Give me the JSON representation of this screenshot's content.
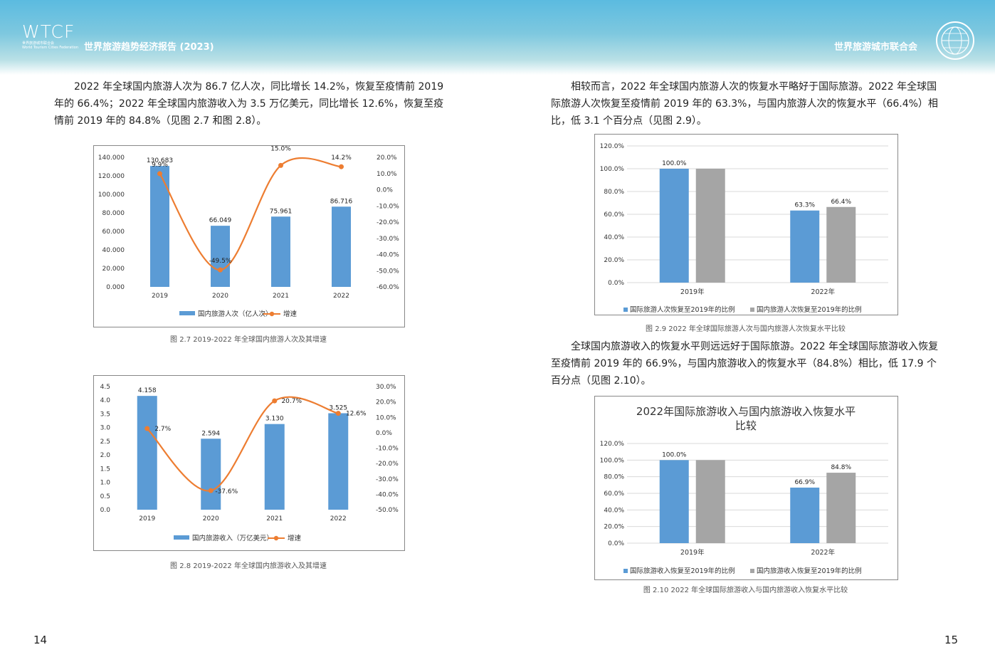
{
  "header": {
    "logo_mark": "WTCF",
    "logo_sub_cn": "世界旅游城市联合会",
    "logo_sub_en": "World Tourism Cities Federation",
    "report_title": "世界旅游趋势经济报告 (2023)",
    "org_name": "世界旅游城市联合会"
  },
  "left_page": {
    "paragraph": "2022 年全球国内旅游人次为 86.7 亿人次，同比增长 14.2%，恢复至疫情前 2019 年的 66.4%；2022 年全球国内旅游收入为 3.5 万亿美元，同比增长 12.6%，恢复至疫情前 2019 年的 84.8%（见图 2.7 和图 2.8）。",
    "caption_27": "图 2.7 2019-2022 年全球国内旅游人次及其增速",
    "caption_28": "图 2.8 2019-2022 年全球国内旅游收入及其增速",
    "page_number": "14"
  },
  "right_page": {
    "paragraph1": "相较而言，2022 年全球国内旅游人次的恢复水平略好于国际旅游。2022 年全球国际旅游人次恢复至疫情前 2019 年的 63.3%，与国内旅游人次的恢复水平（66.4%）相比，低 3.1 个百分点（见图 2.9）。",
    "caption_29": "图 2.9 2022 年全球国际旅游人次与国内旅游人次恢复水平比较",
    "paragraph2": "全球国内旅游收入的恢复水平则远远好于国际旅游。2022 年全球国际旅游收入恢复至疫情前 2019 年的 66.9%，与国内旅游收入的恢复水平（84.8%）相比，低 17.9 个百分点（见图 2.10）。",
    "caption_210": "图 2.10 2022 年全球国际旅游收入与国内旅游收入恢复水平比较",
    "page_number": "15"
  },
  "chart_data": [
    {
      "id": "fig27",
      "type": "bar",
      "categories": [
        "2019",
        "2020",
        "2021",
        "2022"
      ],
      "series": [
        {
          "name": "国内旅游人次（亿人次）",
          "type": "bar",
          "axis": "left",
          "values": [
            130.683,
            66.049,
            75.961,
            86.716
          ],
          "labels": [
            "130.683",
            "66.049",
            "75.961",
            "86.716"
          ],
          "color": "#5b9bd5"
        },
        {
          "name": "增速",
          "type": "line",
          "axis": "right",
          "values": [
            9.9,
            -49.5,
            15.0,
            14.2
          ],
          "labels": [
            "9.9%",
            "-49.5%",
            "15.0%",
            "14.2%"
          ],
          "color": "#ed7d31"
        }
      ],
      "ylim": [
        0,
        140
      ],
      "yticks": [
        "0.000",
        "20.000",
        "40.000",
        "60.000",
        "80.000",
        "100.000",
        "120.000",
        "140.000"
      ],
      "y2lim": [
        -60,
        20
      ],
      "y2ticks": [
        "-60.0%",
        "-50.0%",
        "-40.0%",
        "-30.0%",
        "-20.0%",
        "-10.0%",
        "0.0%",
        "10.0%",
        "20.0%"
      ],
      "legend": "bottom"
    },
    {
      "id": "fig28",
      "type": "bar",
      "categories": [
        "2019",
        "2020",
        "2021",
        "2022"
      ],
      "series": [
        {
          "name": "国内旅游收入（万亿美元）",
          "type": "bar",
          "axis": "left",
          "values": [
            4.158,
            2.594,
            3.13,
            3.525
          ],
          "labels": [
            "4.158",
            "2.594",
            "3.130",
            "3.525"
          ],
          "color": "#5b9bd5"
        },
        {
          "name": "增速",
          "type": "line",
          "axis": "right",
          "values": [
            2.7,
            -37.6,
            20.7,
            12.6
          ],
          "labels": [
            "2.7%",
            "-37.6%",
            "20.7%",
            "12.6%"
          ],
          "color": "#ed7d31"
        }
      ],
      "ylim": [
        0,
        4.5
      ],
      "yticks": [
        "0.0",
        "0.5",
        "1.0",
        "1.5",
        "2.0",
        "2.5",
        "3.0",
        "3.5",
        "4.0",
        "4.5"
      ],
      "y2lim": [
        -50,
        30
      ],
      "y2ticks": [
        "-50.0%",
        "-40.0%",
        "-30.0%",
        "-20.0%",
        "-10.0%",
        "0.0%",
        "10.0%",
        "20.0%",
        "30.0%"
      ],
      "legend": "bottom"
    },
    {
      "id": "fig29",
      "type": "bar",
      "title": "",
      "categories": [
        "2019年",
        "2022年"
      ],
      "series": [
        {
          "name": "国际旅游人次恢复至2019年的比例",
          "values": [
            100.0,
            63.3
          ],
          "labels": [
            "100.0%",
            "63.3%"
          ],
          "color": "#5b9bd5"
        },
        {
          "name": "国内旅游人次恢复至2019年的比例",
          "values": [
            100.0,
            66.4
          ],
          "labels": [
            "",
            "66.4%"
          ],
          "color": "#a5a5a5"
        }
      ],
      "ylim": [
        0,
        120
      ],
      "yticks": [
        "0.0%",
        "20.0%",
        "40.0%",
        "60.0%",
        "80.0%",
        "100.0%",
        "120.0%"
      ],
      "legend": "bottom"
    },
    {
      "id": "fig210",
      "type": "bar",
      "title_line1": "2022年国际旅游收入与国内旅游收入恢复水平",
      "title_line2": "比较",
      "categories": [
        "2019年",
        "2022年"
      ],
      "series": [
        {
          "name": "国际旅游收入恢复至2019年的比例",
          "values": [
            100.0,
            66.9
          ],
          "labels": [
            "100.0%",
            "66.9%"
          ],
          "color": "#5b9bd5"
        },
        {
          "name": "国内旅游收入恢复至2019年的比例",
          "values": [
            100.0,
            84.8
          ],
          "labels": [
            "",
            "84.8%"
          ],
          "color": "#a5a5a5"
        }
      ],
      "ylim": [
        0,
        120
      ],
      "yticks": [
        "0.0%",
        "20.0%",
        "40.0%",
        "60.0%",
        "80.0%",
        "100.0%",
        "120.0%"
      ],
      "legend": "bottom"
    }
  ]
}
